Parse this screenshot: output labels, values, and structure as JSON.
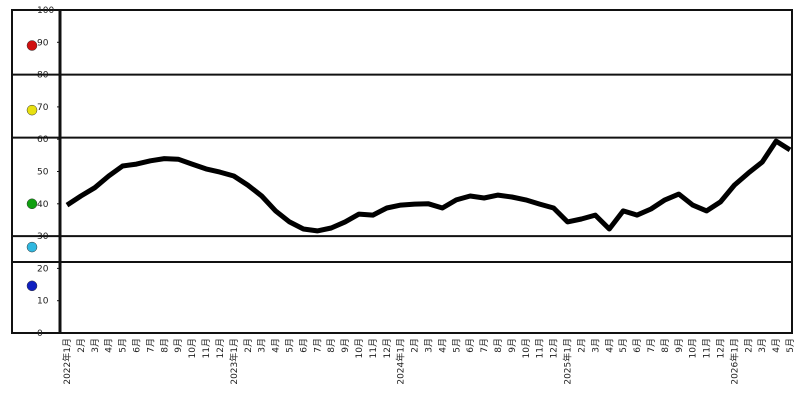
{
  "chart_data": {
    "type": "line",
    "categories": [
      "2022年1月",
      "2月",
      "3月",
      "4月",
      "5月",
      "6月",
      "7月",
      "8月",
      "9月",
      "10月",
      "11月",
      "12月",
      "2023年1月",
      "2月",
      "3月",
      "4月",
      "5月",
      "6月",
      "7月",
      "8月",
      "9月",
      "10月",
      "11月",
      "12月",
      "2024年1月",
      "2月",
      "3月",
      "4月",
      "5月",
      "6月",
      "7月",
      "8月",
      "9月",
      "10月",
      "11月",
      "12月",
      "2025年1月",
      "2月",
      "3月",
      "4月",
      "5月",
      "6月",
      "7月",
      "8月",
      "9月",
      "10月",
      "11月",
      "12月",
      "2026年1月",
      "2月",
      "3月",
      "4月",
      "5月"
    ],
    "values": [
      39.6,
      42.4,
      45,
      48.6,
      51.7,
      52.3,
      53.3,
      54,
      53.8,
      52.3,
      50.8,
      49.8,
      48.6,
      45.8,
      42.4,
      37.8,
      34.4,
      32.2,
      31.6,
      32.5,
      34.4,
      36.8,
      36.5,
      38.7,
      39.6,
      39.9,
      40,
      38.7,
      41.2,
      42.4,
      41.8,
      42.7,
      42.1,
      41.2,
      39.9,
      38.7,
      34.4,
      35.3,
      36.5,
      32.2,
      37.8,
      36.5,
      38.4,
      41.2,
      43,
      39.6,
      37.8,
      40.6,
      45.8,
      49.5,
      52.9,
      59.4,
      56.7
    ],
    "color": "#000000",
    "ylim": [
      0,
      100
    ],
    "yticks": [
      0,
      10,
      20,
      30,
      40,
      50,
      60,
      70,
      80,
      90,
      100
    ],
    "zone_lines": [
      80,
      60.5,
      30,
      22
    ],
    "zone_markers": [
      {
        "value": 89,
        "color": "#d01010"
      },
      {
        "value": 69,
        "color": "#e8e010"
      },
      {
        "value": 40,
        "color": "#10a010"
      },
      {
        "value": 26.6,
        "color": "#30b8e0"
      },
      {
        "value": 14.6,
        "color": "#1020c0"
      }
    ]
  }
}
